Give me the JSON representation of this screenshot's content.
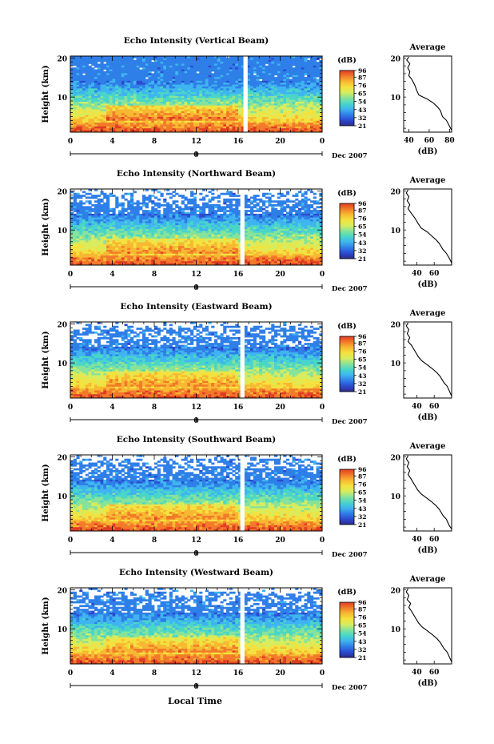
{
  "figure": {
    "x_axis_label": "Local Time",
    "date_label": "Dec 2007",
    "extra_tick_label": "0"
  },
  "colors": {
    "colormap": [
      "#2d2a8a",
      "#2c4bd0",
      "#2f7fe8",
      "#3fb4f0",
      "#49d6c8",
      "#86e39a",
      "#d7ec5f",
      "#f3e23f",
      "#f8b832",
      "#f27a2a",
      "#e03b24"
    ]
  },
  "chart_data": [
    {
      "type": "heatmap",
      "title": "Echo Intensity (Vertical Beam)",
      "ylabel": "Height (km)",
      "x_ticks": [
        "0",
        "4",
        "8",
        "12",
        "16",
        "20",
        "0"
      ],
      "y_ticks": [
        "20",
        "10"
      ],
      "xlim": [
        0,
        24
      ],
      "ylim": [
        1,
        20.5
      ],
      "gap_hours": [
        16.5,
        16.9
      ],
      "colorbar": {
        "label": "(dB)",
        "ticks": [
          "96",
          "87",
          "76",
          "65",
          "54",
          "43",
          "32",
          "21"
        ],
        "range": [
          21,
          96
        ]
      },
      "profile": {
        "title": "Average",
        "xlabel": "(dB)",
        "x_ticks": [
          "40",
          "60",
          "80"
        ],
        "y_ticks": [
          "20",
          "10"
        ],
        "xlim": [
          35,
          82
        ],
        "points": [
          [
            82,
            1.5
          ],
          [
            80,
            2.5
          ],
          [
            77,
            4
          ],
          [
            73,
            5
          ],
          [
            71,
            6.5
          ],
          [
            68,
            7.5
          ],
          [
            64,
            8.5
          ],
          [
            58,
            9.5
          ],
          [
            50,
            10.5
          ],
          [
            48,
            11.5
          ],
          [
            46,
            13
          ],
          [
            43,
            14.5
          ],
          [
            40,
            15.5
          ],
          [
            41,
            16.5
          ],
          [
            39,
            17.5
          ],
          [
            41,
            18.5
          ],
          [
            38,
            19.5
          ],
          [
            40,
            20.3
          ]
        ]
      }
    },
    {
      "type": "heatmap",
      "title": "Echo Intensity (Northward Beam)",
      "ylabel": "Height (km)",
      "x_ticks": [
        "0",
        "4",
        "8",
        "12",
        "16",
        "20",
        "0"
      ],
      "y_ticks": [
        "20",
        "10"
      ],
      "xlim": [
        0,
        24
      ],
      "ylim": [
        1,
        20.5
      ],
      "gap_hours": [
        16.2,
        16.6
      ],
      "colorbar": {
        "label": "(dB)",
        "ticks": [
          "96",
          "87",
          "76",
          "65",
          "54",
          "43",
          "32",
          "21"
        ],
        "range": [
          21,
          96
        ]
      },
      "profile": {
        "title": "Average",
        "xlabel": "(dB)",
        "x_ticks": [
          "40",
          "60"
        ],
        "y_ticks": [
          "20",
          "10"
        ],
        "xlim": [
          25,
          80
        ],
        "points": [
          [
            80,
            1.5
          ],
          [
            78,
            2.5
          ],
          [
            74,
            4
          ],
          [
            70,
            5
          ],
          [
            66,
            6.5
          ],
          [
            62,
            7.5
          ],
          [
            57,
            8.5
          ],
          [
            52,
            9.5
          ],
          [
            45,
            10.5
          ],
          [
            42,
            11.5
          ],
          [
            38,
            13
          ],
          [
            33,
            14.5
          ],
          [
            30,
            15.5
          ],
          [
            32,
            16.5
          ],
          [
            29,
            17.5
          ],
          [
            31,
            18.5
          ],
          [
            28,
            19.5
          ],
          [
            30,
            20.3
          ]
        ]
      }
    },
    {
      "type": "heatmap",
      "title": "Echo Intensity (Eastward Beam)",
      "ylabel": "Height (km)",
      "x_ticks": [
        "0",
        "4",
        "8",
        "12",
        "16",
        "20",
        "0"
      ],
      "y_ticks": [
        "20",
        "10"
      ],
      "xlim": [
        0,
        24
      ],
      "ylim": [
        1,
        20.5
      ],
      "gap_hours": [
        16.2,
        16.6
      ],
      "colorbar": {
        "label": "(dB)",
        "ticks": [
          "96",
          "87",
          "76",
          "65",
          "54",
          "43",
          "32",
          "21"
        ],
        "range": [
          21,
          96
        ]
      },
      "profile": {
        "title": "Average",
        "xlabel": "(dB)",
        "x_ticks": [
          "40",
          "60"
        ],
        "y_ticks": [
          "20",
          "10"
        ],
        "xlim": [
          25,
          80
        ],
        "points": [
          [
            80,
            1.5
          ],
          [
            78,
            2.5
          ],
          [
            75,
            4
          ],
          [
            71,
            5
          ],
          [
            67,
            6.5
          ],
          [
            63,
            7.5
          ],
          [
            58,
            8.5
          ],
          [
            52,
            9.5
          ],
          [
            46,
            10.5
          ],
          [
            42,
            11.5
          ],
          [
            38,
            13
          ],
          [
            34,
            14.5
          ],
          [
            30,
            15.5
          ],
          [
            32,
            16.5
          ],
          [
            29,
            17.5
          ],
          [
            31,
            18.5
          ],
          [
            28,
            19.5
          ],
          [
            30,
            20.3
          ]
        ]
      }
    },
    {
      "type": "heatmap",
      "title": "Echo Intensity (Southward Beam)",
      "ylabel": "Height (km)",
      "x_ticks": [
        "0",
        "4",
        "8",
        "12",
        "16",
        "20",
        "0"
      ],
      "y_ticks": [
        "20",
        "10"
      ],
      "xlim": [
        0,
        24
      ],
      "ylim": [
        1,
        20.5
      ],
      "gap_hours": [
        16.2,
        16.6
      ],
      "colorbar": {
        "label": "(dB)",
        "ticks": [
          "96",
          "87",
          "76",
          "65",
          "54",
          "43",
          "32",
          "21"
        ],
        "range": [
          21,
          96
        ]
      },
      "profile": {
        "title": "Average",
        "xlabel": "(dB)",
        "x_ticks": [
          "40",
          "60"
        ],
        "y_ticks": [
          "20",
          "10"
        ],
        "xlim": [
          25,
          80
        ],
        "points": [
          [
            80,
            1.5
          ],
          [
            77,
            2.5
          ],
          [
            74,
            4
          ],
          [
            70,
            5
          ],
          [
            66,
            6.5
          ],
          [
            62,
            7.5
          ],
          [
            57,
            8.5
          ],
          [
            51,
            9.5
          ],
          [
            45,
            10.5
          ],
          [
            41,
            11.5
          ],
          [
            37,
            13
          ],
          [
            33,
            14.5
          ],
          [
            30,
            15.5
          ],
          [
            32,
            16.5
          ],
          [
            29,
            17.5
          ],
          [
            31,
            18.5
          ],
          [
            28,
            19.5
          ],
          [
            30,
            20.3
          ]
        ]
      }
    },
    {
      "type": "heatmap",
      "title": "Echo Intensity (Westward Beam)",
      "ylabel": "Height (km)",
      "x_ticks": [
        "0",
        "4",
        "8",
        "12",
        "16",
        "20",
        "0"
      ],
      "y_ticks": [
        "20",
        "10"
      ],
      "xlim": [
        0,
        24
      ],
      "ylim": [
        1,
        20.5
      ],
      "gap_hours": [
        16.2,
        16.6
      ],
      "colorbar": {
        "label": "(dB)",
        "ticks": [
          "96",
          "87",
          "76",
          "65",
          "54",
          "43",
          "32",
          "21"
        ],
        "range": [
          21,
          96
        ]
      },
      "profile": {
        "title": "Average",
        "xlabel": "(dB)",
        "x_ticks": [
          "40",
          "60"
        ],
        "y_ticks": [
          "20",
          "10"
        ],
        "xlim": [
          25,
          80
        ],
        "points": [
          [
            80,
            1.5
          ],
          [
            78,
            2.5
          ],
          [
            75,
            4
          ],
          [
            71,
            5
          ],
          [
            67,
            6.5
          ],
          [
            63,
            7.5
          ],
          [
            58,
            8.5
          ],
          [
            52,
            9.5
          ],
          [
            46,
            10.5
          ],
          [
            42,
            11.5
          ],
          [
            38,
            13
          ],
          [
            34,
            14.5
          ],
          [
            31,
            15.5
          ],
          [
            33,
            16.5
          ],
          [
            29,
            17.5
          ],
          [
            31,
            18.5
          ],
          [
            28,
            19.5
          ],
          [
            30,
            20.3
          ]
        ]
      }
    }
  ]
}
